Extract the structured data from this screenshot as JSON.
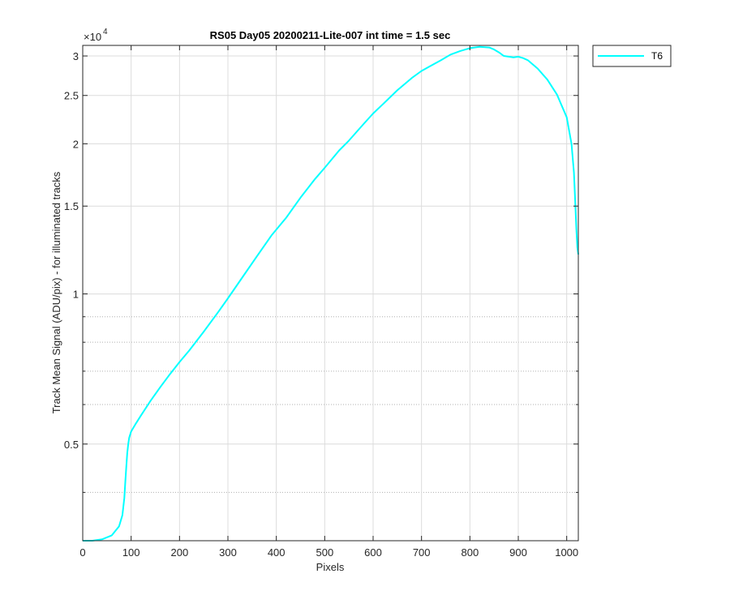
{
  "chart_data": {
    "type": "line",
    "title": "RS05 Day05 20200211-Lite-007 int time = 1.5 sec",
    "xlabel": "Pixels",
    "ylabel": "Track Mean Signal (ADU/pix) - for illuminated tracks",
    "y_scale": "log",
    "y_multiplier_label": "×10",
    "y_multiplier_exponent": "4",
    "xlim": [
      0,
      1024
    ],
    "ylim": [
      3200,
      31500
    ],
    "x_ticks": [
      0,
      100,
      200,
      300,
      400,
      500,
      600,
      700,
      800,
      900,
      1000
    ],
    "x_tick_labels": [
      "0",
      "100",
      "200",
      "300",
      "400",
      "500",
      "600",
      "700",
      "800",
      "900",
      "1000"
    ],
    "y_ticks": [
      5000,
      10000,
      15000,
      20000,
      25000,
      30000
    ],
    "y_tick_labels": [
      "0.5",
      "1",
      "1.5",
      "2",
      "2.5",
      "3"
    ],
    "grid": true,
    "legend_location": "outside-top-right",
    "series": [
      {
        "name": "T6",
        "color": "#00ffff",
        "x": [
          0,
          20,
          40,
          60,
          75,
          82,
          86,
          88,
          90,
          92,
          94,
          96,
          100,
          110,
          120,
          140,
          160,
          180,
          200,
          220,
          250,
          280,
          300,
          330,
          360,
          390,
          420,
          450,
          480,
          500,
          530,
          550,
          580,
          600,
          620,
          650,
          680,
          700,
          720,
          740,
          760,
          780,
          800,
          820,
          840,
          850,
          860,
          870,
          880,
          890,
          900,
          910,
          920,
          940,
          960,
          980,
          1000,
          1010,
          1015,
          1018,
          1020,
          1022,
          1024
        ],
        "y": [
          3200,
          3200,
          3220,
          3280,
          3420,
          3600,
          3900,
          4200,
          4500,
          4800,
          5000,
          5150,
          5300,
          5500,
          5700,
          6100,
          6500,
          6900,
          7300,
          7700,
          8400,
          9200,
          9800,
          10800,
          11900,
          13100,
          14200,
          15600,
          17000,
          17900,
          19400,
          20300,
          21900,
          23000,
          24000,
          25600,
          27100,
          28000,
          28700,
          29400,
          30200,
          30700,
          31100,
          31300,
          31200,
          30900,
          30500,
          30000,
          29900,
          29800,
          29900,
          29700,
          29400,
          28300,
          26900,
          25100,
          22600,
          20000,
          17500,
          15000,
          13500,
          12400,
          12000
        ]
      }
    ]
  }
}
